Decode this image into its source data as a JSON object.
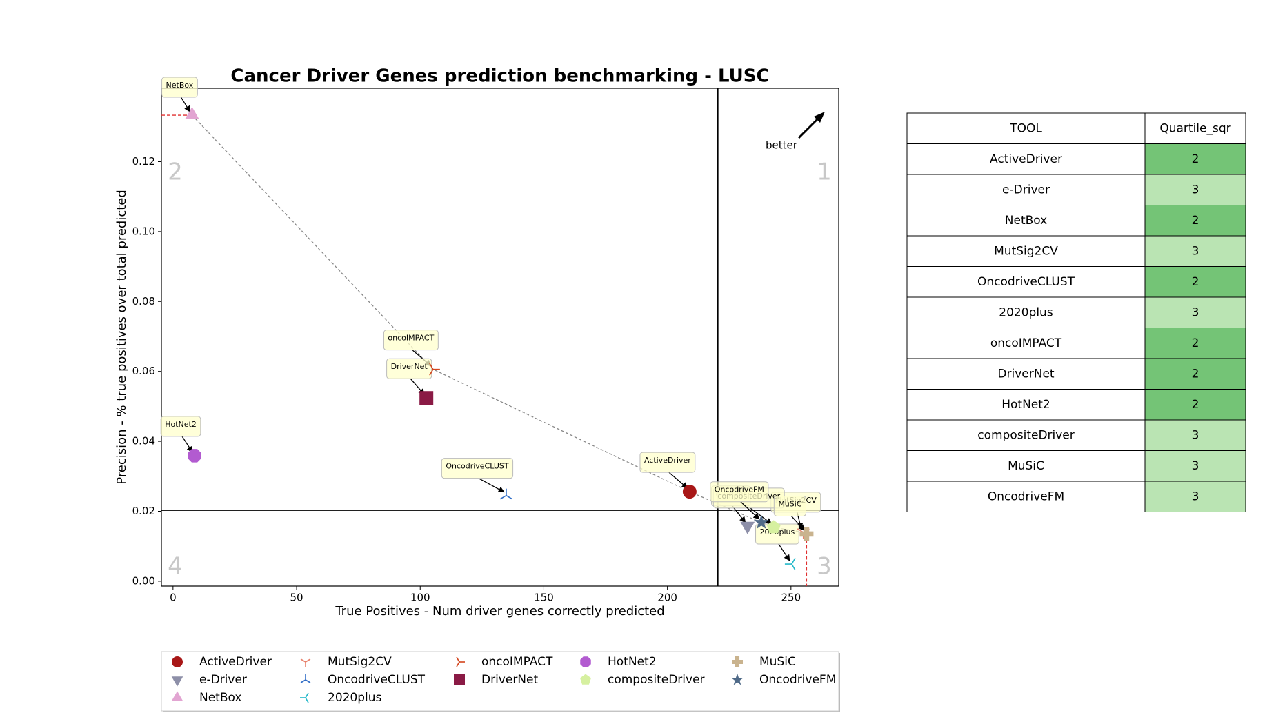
{
  "chart_data": {
    "type": "scatter",
    "title": "Cancer Driver Genes prediction benchmarking - LUSC",
    "x_label": "True Positives - Num driver genes correctly predicted",
    "y_label": "Precision - % true positives over total predicted",
    "xlim": [
      -4.7,
      269.3
    ],
    "ylim": [
      -0.0014,
      0.141
    ],
    "xticks": [
      0,
      50,
      100,
      150,
      200,
      250
    ],
    "yticks": [
      {
        "value": 0,
        "label": "0.00"
      },
      0.02,
      0.04,
      0.06,
      0.08,
      {
        "value": 0.1,
        "label": "0.10"
      },
      0.12
    ],
    "x_divider": 220.4,
    "y_divider": 0.0203,
    "quadrants": [
      "1",
      "2",
      "3",
      "4"
    ],
    "better": "better",
    "series": [
      {
        "name": "ActiveDriver",
        "color": "#a81717",
        "marker": "circle",
        "x": [
          209
        ],
        "values": [
          0.0256
        ]
      },
      {
        "name": "e-Driver",
        "color": "#8d8fa8",
        "marker": "triangle-down",
        "x": [
          232.4
        ],
        "values": [
          0.0158
        ]
      },
      {
        "name": "NetBox",
        "color": "#e2a5d2",
        "marker": "triangle-up",
        "x": [
          7.7
        ],
        "values": [
          0.1333
        ]
      },
      {
        "name": "MutSig2CV",
        "color": "#e8806b",
        "marker": "tri-down",
        "x": [
          255
        ],
        "values": [
          0.014
        ]
      },
      {
        "name": "OncodriveCLUST",
        "color": "#2f6cc6",
        "marker": "tri-up",
        "x": [
          134.8
        ],
        "values": [
          0.0245
        ]
      },
      {
        "name": "2020plus",
        "color": "#23b8c9",
        "marker": "tri-left",
        "x": [
          250.3
        ],
        "values": [
          0.0049
        ]
      },
      {
        "name": "oncoIMPACT",
        "color": "#d3441c",
        "marker": "tri-right",
        "x": [
          105.2
        ],
        "values": [
          0.0606
        ]
      },
      {
        "name": "DriverNet",
        "color": "#8a1a45",
        "marker": "square",
        "x": [
          102.5
        ],
        "values": [
          0.0524
        ]
      },
      {
        "name": "HotNet2",
        "color": "#b25bd0",
        "marker": "octagon",
        "x": [
          8.7
        ],
        "values": [
          0.0359
        ]
      },
      {
        "name": "compositeDriver",
        "color": "#d6f0a0",
        "marker": "pentagon",
        "x": [
          243
        ],
        "values": [
          0.0154
        ]
      },
      {
        "name": "MuSiC",
        "color": "#c9b38e",
        "marker": "plus",
        "x": [
          256.3
        ],
        "values": [
          0.0135
        ]
      },
      {
        "name": "OncodriveFM",
        "color": "#4f6a88",
        "marker": "star",
        "x": [
          238
        ],
        "values": [
          0.0168
        ]
      }
    ]
  },
  "table": {
    "columns": [
      "TOOL",
      "Quartile_sqr"
    ],
    "rows": [
      [
        "ActiveDriver",
        2
      ],
      [
        "e-Driver",
        3
      ],
      [
        "NetBox",
        2
      ],
      [
        "MutSig2CV",
        3
      ],
      [
        "OncodriveCLUST",
        2
      ],
      [
        "2020plus",
        3
      ],
      [
        "oncoIMPACT",
        2
      ],
      [
        "DriverNet",
        2
      ],
      [
        "HotNet2",
        2
      ],
      [
        "compositeDriver",
        3
      ],
      [
        "MuSiC",
        3
      ],
      [
        "OncodriveFM",
        3
      ]
    ],
    "cell_colors": {
      "2": "#74c476",
      "3": "#bae4b3"
    }
  }
}
